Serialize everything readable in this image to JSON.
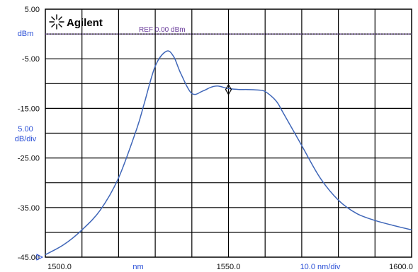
{
  "brand": {
    "name": "Agilent"
  },
  "colors": {
    "trace": "#3f66b8",
    "grid": "#000000",
    "ref_line": "#7b4fb5",
    "blue_text": "#2a4fd6"
  },
  "chart_data": {
    "type": "line",
    "xlim": [
      1500.0,
      1600.0
    ],
    "ylim": [
      -45.0,
      5.0
    ],
    "x_ticks": [
      "1500.0",
      "1550.0",
      "1600.0"
    ],
    "y_ticks": [
      "5.00",
      "-5.00",
      "-15.00",
      "-25.00",
      "-35.00",
      "-45.00"
    ],
    "y_unit": "dBm",
    "y_scale_top": "5.00",
    "y_scale_bottom": "dB/div",
    "x_unit": "nm",
    "x_scale": "10.0 nm/div",
    "reference": {
      "label": "REF 0.00 dBm",
      "value": 0.0
    },
    "marker": {
      "x": 1550.0,
      "y": -11.2
    },
    "grid": true,
    "series": [
      {
        "x": [
          1500,
          1505,
          1510,
          1515,
          1520,
          1525,
          1527,
          1530,
          1533,
          1535,
          1537,
          1540,
          1543,
          1545,
          1547,
          1550,
          1553,
          1555,
          1558,
          1560,
          1563,
          1565,
          1570,
          1575,
          1580,
          1585,
          1590,
          1595,
          1600
        ],
        "y": [
          -44.5,
          -42.5,
          -39.5,
          -35.5,
          -29.0,
          -19.0,
          -14.0,
          -6.5,
          -3.5,
          -4.5,
          -8.0,
          -12.0,
          -11.5,
          -10.8,
          -10.5,
          -11.0,
          -11.2,
          -11.2,
          -11.3,
          -11.6,
          -13.5,
          -16.0,
          -22.5,
          -29.0,
          -33.5,
          -36.2,
          -37.6,
          -38.6,
          -39.5
        ]
      }
    ]
  }
}
